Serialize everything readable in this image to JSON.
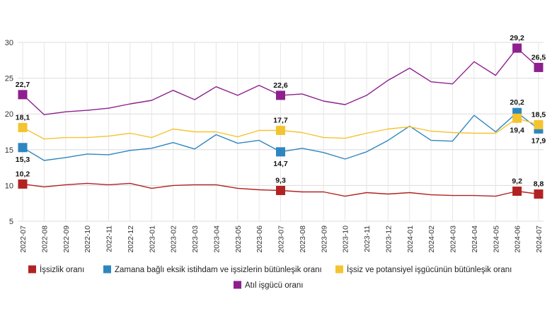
{
  "chart_data": {
    "type": "line",
    "x": [
      "2022-07",
      "2022-08",
      "2022-09",
      "2022-10",
      "2022-11",
      "2022-12",
      "2023-01",
      "2023-02",
      "2023-03",
      "2023-04",
      "2023-05",
      "2023-06",
      "2023-07",
      "2023-08",
      "2023-09",
      "2023-10",
      "2023-11",
      "2023-12",
      "2024-01",
      "2024-02",
      "2024-03",
      "2024-04",
      "2024-05",
      "2024-06",
      "2024-07"
    ],
    "yticks": [
      5,
      10,
      15,
      20,
      25,
      30
    ],
    "ylim": [
      5,
      30
    ],
    "grid": true,
    "legend_position": "bottom",
    "series": [
      {
        "name": "İşsizlik oranı",
        "color": "#b22222",
        "values": [
          10.2,
          9.8,
          10.1,
          10.3,
          10.1,
          10.3,
          9.6,
          10.0,
          10.1,
          10.1,
          9.6,
          9.4,
          9.3,
          9.1,
          9.1,
          8.5,
          9.0,
          8.8,
          9.0,
          8.7,
          8.6,
          8.6,
          8.5,
          9.2,
          8.8
        ],
        "markers": [
          {
            "i": 0,
            "label": "10,2",
            "pos": "above"
          },
          {
            "i": 12,
            "label": "9,3",
            "pos": "above"
          },
          {
            "i": 23,
            "label": "9,2",
            "pos": "above"
          },
          {
            "i": 24,
            "label": "8,8",
            "pos": "above"
          }
        ]
      },
      {
        "name": "Zamana bağlı eksik istihdam ve işsizlerin bütünleşik oranı",
        "color": "#2e86c1",
        "values": [
          15.3,
          13.5,
          13.9,
          14.4,
          14.3,
          14.9,
          15.2,
          16.0,
          15.1,
          17.1,
          15.9,
          16.3,
          14.7,
          15.2,
          14.6,
          13.7,
          14.7,
          16.3,
          18.3,
          16.3,
          16.2,
          19.8,
          17.5,
          20.2,
          17.9
        ],
        "markers": [
          {
            "i": 0,
            "label": "15,3",
            "pos": "below"
          },
          {
            "i": 12,
            "label": "14,7",
            "pos": "below"
          },
          {
            "i": 23,
            "label": "20,2",
            "pos": "above"
          },
          {
            "i": 24,
            "label": "17,9",
            "pos": "below"
          }
        ]
      },
      {
        "name": "İşsiz ve potansiyel işgücünün bütünleşik oranı",
        "color": "#f4c430",
        "values": [
          18.1,
          16.5,
          16.7,
          16.7,
          16.9,
          17.3,
          16.7,
          17.9,
          17.5,
          17.5,
          16.8,
          17.7,
          17.7,
          17.4,
          16.7,
          16.6,
          17.3,
          17.9,
          18.2,
          17.6,
          17.4,
          17.3,
          17.3,
          19.4,
          18.5
        ],
        "markers": [
          {
            "i": 0,
            "label": "18,1",
            "pos": "above"
          },
          {
            "i": 12,
            "label": "17,7",
            "pos": "above"
          },
          {
            "i": 23,
            "label": "19,4",
            "pos": "below"
          },
          {
            "i": 24,
            "label": "18,5",
            "pos": "above"
          }
        ]
      },
      {
        "name": "Atıl işgücü oranı",
        "color": "#8e1f8e",
        "values": [
          22.7,
          19.9,
          20.3,
          20.5,
          20.8,
          21.4,
          21.9,
          23.3,
          22.0,
          23.8,
          22.6,
          24.0,
          22.6,
          22.8,
          21.8,
          21.3,
          22.6,
          24.7,
          26.4,
          24.5,
          24.2,
          27.3,
          25.4,
          29.2,
          26.5
        ],
        "markers": [
          {
            "i": 0,
            "label": "22,7",
            "pos": "above"
          },
          {
            "i": 12,
            "label": "22,6",
            "pos": "above"
          },
          {
            "i": 23,
            "label": "29,2",
            "pos": "above"
          },
          {
            "i": 24,
            "label": "26,5",
            "pos": "above"
          }
        ]
      }
    ]
  }
}
